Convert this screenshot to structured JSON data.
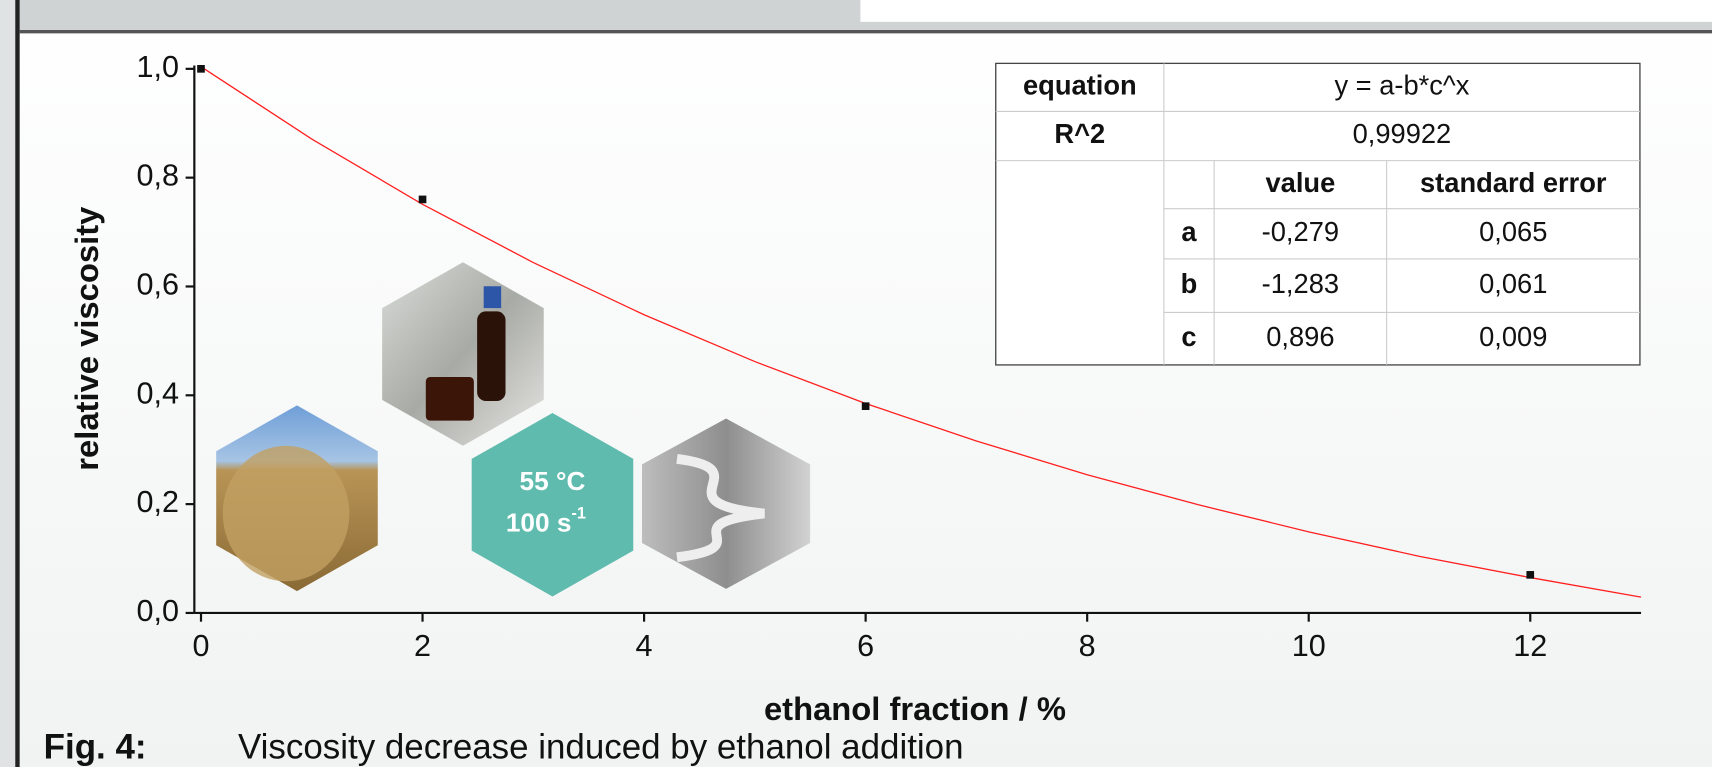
{
  "chart_data": {
    "type": "scatter",
    "xlabel": "ethanol fraction / %",
    "ylabel": "relative viscosity",
    "x": [
      0,
      2,
      6,
      12
    ],
    "values": [
      1.0,
      0.76,
      0.38,
      0.07
    ],
    "color": "#111111",
    "fit": {
      "color": "#ff2020",
      "x": [
        0,
        1,
        2,
        3,
        4,
        5,
        6,
        7,
        8,
        9,
        10,
        11,
        12,
        13
      ],
      "values": [
        1.004,
        0.871,
        0.751,
        0.644,
        0.548,
        0.462,
        0.385,
        0.316,
        0.254,
        0.199,
        0.149,
        0.104,
        0.065,
        0.029
      ]
    },
    "xlim": [
      -0.06,
      13
    ],
    "xticks": [
      0,
      2,
      4,
      6,
      8,
      10,
      12
    ],
    "ylim": [
      0,
      1.0
    ],
    "yticks": [
      {
        "value": 0,
        "label": "0,0"
      },
      {
        "value": 0.2,
        "label": "0,2"
      },
      {
        "value": 0.4,
        "label": "0,4"
      },
      {
        "value": 0.6,
        "label": "0,6"
      },
      {
        "value": 0.8,
        "label": "0,8"
      },
      {
        "value": 1.0,
        "label": "1,0"
      }
    ]
  },
  "table": {
    "equation": [
      "equation",
      "y = a-b*c^x"
    ],
    "r2": [
      "R^2",
      "0,99922"
    ],
    "header": [
      "value",
      "standard error"
    ],
    "rows": [
      [
        "a",
        "-0,279",
        "0,065"
      ],
      [
        "b",
        "-1,283",
        "0,061"
      ],
      [
        "c",
        "0,896",
        "0,009"
      ]
    ]
  },
  "badge": {
    "temperature": "55 °C",
    "rate": "100 s",
    "rate_exp": "-1"
  },
  "caption": {
    "label": "Fig. 4:",
    "text": "Viscosity decrease induced by ethanol addition"
  }
}
